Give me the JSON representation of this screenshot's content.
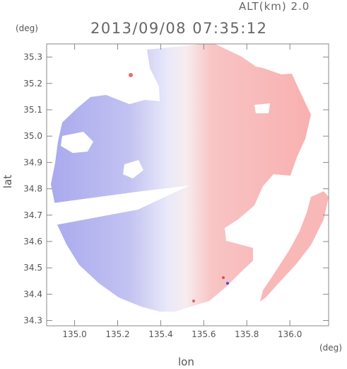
{
  "header": {
    "altitude": "ALT(km) 2.0",
    "timestamp": "2013/09/08 07:35:12"
  },
  "chart_data": {
    "type": "heatmap",
    "title": "2013/09/08 07:35:12",
    "xlabel": "lon",
    "ylabel": "lat",
    "x_unit": "(deg)",
    "y_unit": "(deg)",
    "xlim": [
      134.87,
      136.18
    ],
    "ylim": [
      34.28,
      35.35
    ],
    "x_ticks": [
      135.0,
      135.2,
      135.4,
      135.6,
      135.8,
      136.0
    ],
    "x_tick_labels": [
      "135.0",
      "135.2",
      "135.4",
      "135.6",
      "135.8",
      "136.0"
    ],
    "y_ticks": [
      34.3,
      34.4,
      34.5,
      34.6,
      34.7,
      34.8,
      34.9,
      35.0,
      35.1,
      35.2,
      35.3
    ],
    "y_tick_labels": [
      "34.3",
      "34.4",
      "34.5",
      "34.6",
      "34.7",
      "34.8",
      "34.9",
      "35.0",
      "35.1",
      "35.2",
      "35.3"
    ],
    "grid": false,
    "radar_center": [
      135.52,
      34.82
    ],
    "colors": {
      "approaching": "#b7b7f0",
      "receding": "#f8b4b4",
      "neutral": "#f3f3fb",
      "axis": "#888888"
    }
  }
}
